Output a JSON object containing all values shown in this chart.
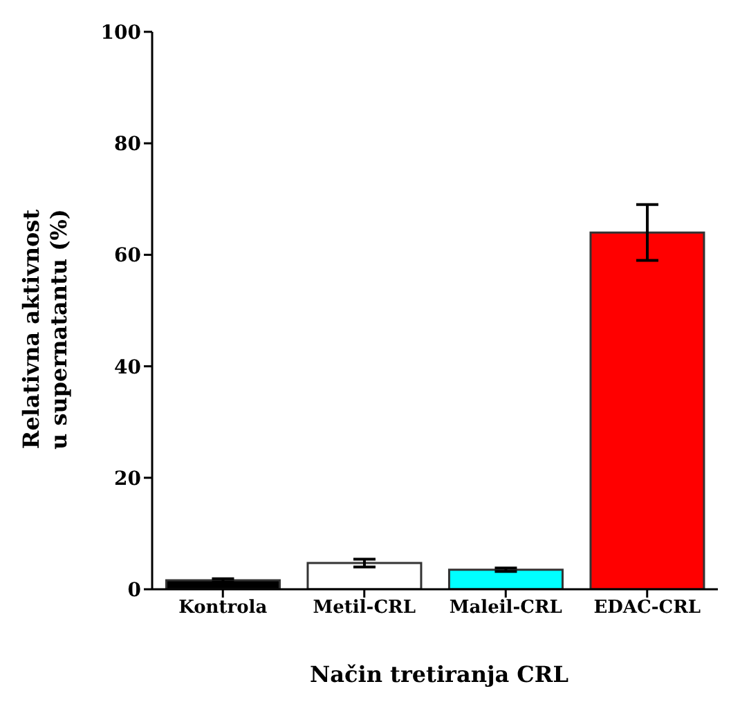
{
  "chart_data": {
    "type": "bar",
    "xlabel": "Način tretiranja CRL",
    "ylabel": "Relativna aktivnost\nu supernatantu (%)",
    "categories": [
      "Kontrola",
      "Metil-CRL",
      "Maleil-CRL",
      "EDAC-CRL"
    ],
    "values": [
      1.6,
      4.7,
      3.5,
      64
    ],
    "errors": [
      0.3,
      0.7,
      0.3,
      5
    ],
    "colors": [
      "#000000",
      "#ffffff",
      "#00ffff",
      "#ff0000"
    ],
    "ylim": [
      0,
      100
    ],
    "yticks": [
      0,
      20,
      40,
      60,
      80,
      100
    ],
    "grid": false
  }
}
